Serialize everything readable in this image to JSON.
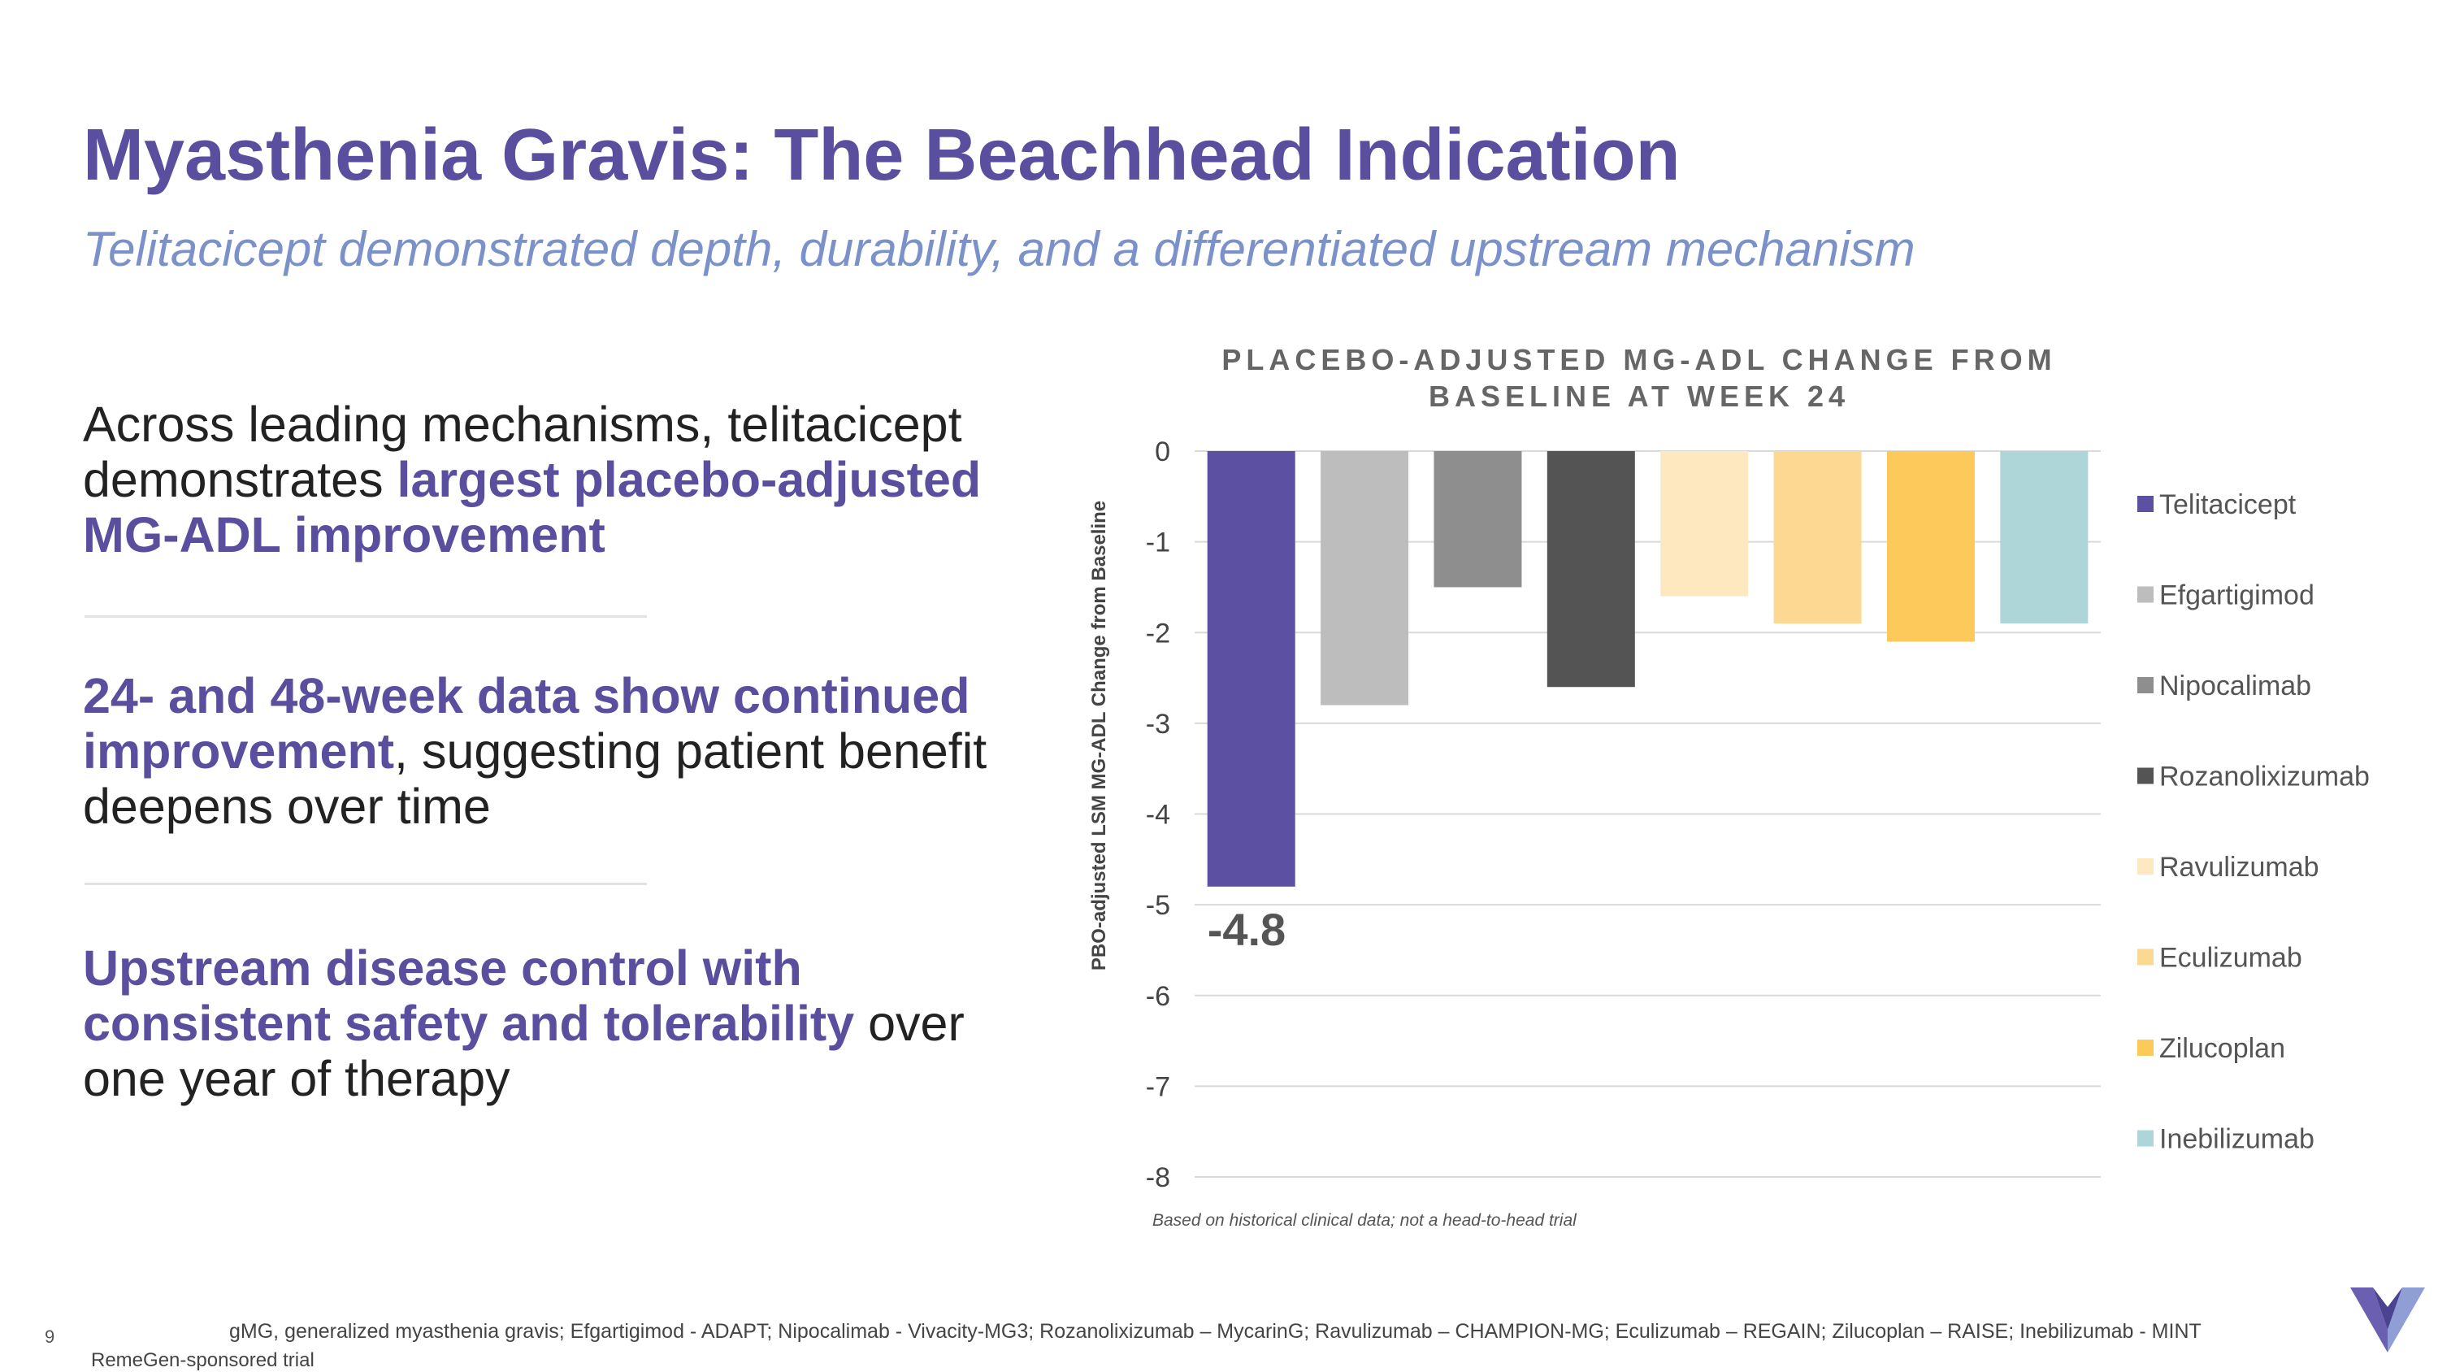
{
  "slide": {
    "title": "Myasthenia Gravis: The Beachhead Indication",
    "subtitle": "Telitacicept demonstrated depth, durability, and a differentiated upstream mechanism",
    "page_number": "9"
  },
  "bullets": [
    {
      "pre": "Across leading mechanisms, telitacicept demonstrates ",
      "highlight": "largest placebo-adjusted MG-ADL improvement",
      "post": ""
    },
    {
      "pre": "",
      "highlight": "24- and 48-week data show continued improvement",
      "post": ", suggesting patient benefit deepens over time"
    },
    {
      "pre": "",
      "highlight": "Upstream disease control with consistent safety and tolerability",
      "post": " over one year of therapy"
    }
  ],
  "chart_data": {
    "type": "bar",
    "title_lines": [
      "PLACEBO-ADJUSTED MG-ADL CHANGE FROM",
      "BASELINE AT WEEK 24"
    ],
    "ylabel": "PBO-adjusted LSM MG-ADL Change from Baseline",
    "xlabel": "",
    "ylim": [
      -8,
      0
    ],
    "yticks": [
      0,
      -1,
      -2,
      -3,
      -4,
      -5,
      -6,
      -7,
      -8
    ],
    "categories": [
      "Telitacicept",
      "Efgartigimod",
      "Nipocalimab",
      "Rozanolixizumab",
      "Ravulizumab",
      "Eculizumab",
      "Zilucoplan",
      "Inebilizumab"
    ],
    "values": [
      -4.8,
      -2.8,
      -1.5,
      -2.6,
      -1.6,
      -1.9,
      -2.1,
      -1.9
    ],
    "colors": [
      "#5b50a1",
      "#bdbdbd",
      "#8e8e8e",
      "#545454",
      "#fde8c0",
      "#fdd893",
      "#fdc95a",
      "#aed6d8"
    ],
    "data_labels": [
      {
        "index": 0,
        "text": "-4.8"
      }
    ],
    "legend_position": "right",
    "grid": true
  },
  "chart_footnote": "Based on historical clinical data; not a head-to-head trial",
  "references": "gMG, generalized myasthenia gravis; Efgartigimod - ADAPT; Nipocalimab - Vivacity-MG3; Rozanolixizumab – MycarinG; Ravulizumab – CHAMPION-MG; Eculizumab – REGAIN; Zilucoplan – RAISE; Inebilizumab - MINT",
  "sponsor_note": "RemeGen-sponsored trial",
  "logo": {
    "icon": "v-logo-icon",
    "colors": [
      "#6a5fb0",
      "#8f9fd6",
      "#4c4390"
    ]
  }
}
